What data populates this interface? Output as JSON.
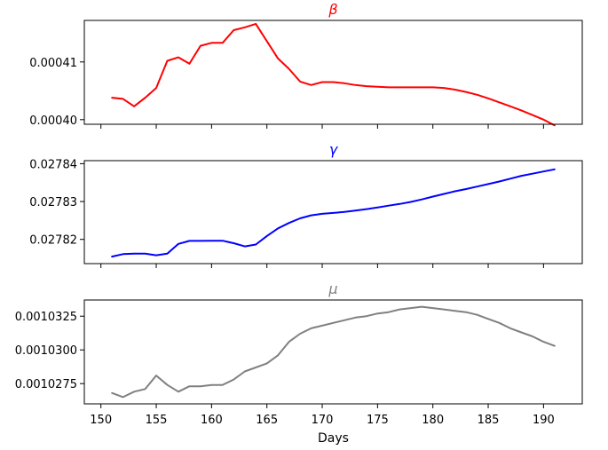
{
  "chart_data": {
    "type": "line",
    "xlabel": "Days",
    "xlim": [
      148.5,
      193.5
    ],
    "xticks": [
      150,
      155,
      160,
      165,
      170,
      175,
      180,
      185,
      190
    ],
    "x": [
      151,
      152,
      153,
      154,
      155,
      156,
      157,
      158,
      159,
      160,
      161,
      162,
      163,
      164,
      165,
      166,
      167,
      168,
      169,
      170,
      171,
      172,
      173,
      174,
      175,
      176,
      177,
      178,
      179,
      180,
      181,
      182,
      183,
      184,
      185,
      186,
      187,
      188,
      189,
      190,
      191
    ],
    "panels": [
      {
        "title": "β",
        "color": "#ff0000",
        "ylim": [
          0.0003992,
          0.0004172
        ],
        "yticks": [
          0.0004,
          0.00041
        ],
        "ytick_labels": [
          "0.00040",
          "0.00041"
        ],
        "values": [
          0.0004038,
          0.0004036,
          0.0004023,
          0.0004038,
          0.0004055,
          0.0004102,
          0.0004108,
          0.0004097,
          0.0004128,
          0.0004133,
          0.0004133,
          0.0004155,
          0.000416,
          0.0004166,
          0.0004136,
          0.0004106,
          0.0004088,
          0.0004066,
          0.000406,
          0.0004065,
          0.0004065,
          0.0004063,
          0.000406,
          0.0004058,
          0.0004057,
          0.0004056,
          0.0004056,
          0.0004056,
          0.0004056,
          0.0004056,
          0.0004055,
          0.0004052,
          0.0004048,
          0.0004043,
          0.0004037,
          0.000403,
          0.0004023,
          0.0004016,
          0.0004008,
          0.0004,
          0.000399
        ]
      },
      {
        "title": "γ",
        "color": "#0000ff",
        "ylim": [
          0.0278136,
          0.0278408
        ],
        "yticks": [
          0.02782,
          0.02783,
          0.02784
        ],
        "ytick_labels": [
          "0.02782",
          "0.02783",
          "0.02784"
        ],
        "values": [
          0.02781545,
          0.0278161,
          0.02781625,
          0.02781625,
          0.0278158,
          0.02781625,
          0.0278188,
          0.0278196,
          0.0278196,
          0.02781965,
          0.02781965,
          0.027819,
          0.02781815,
          0.02781865,
          0.0278209,
          0.0278229,
          0.02782435,
          0.02782555,
          0.02782635,
          0.02782675,
          0.027827,
          0.02782725,
          0.0278276,
          0.027828,
          0.02782845,
          0.0278289,
          0.02782935,
          0.0278299,
          0.02783055,
          0.0278313,
          0.027832,
          0.0278327,
          0.0278333,
          0.02783395,
          0.0278346,
          0.0278353,
          0.02783605,
          0.0278368,
          0.02783735,
          0.02783795,
          0.0278385
        ]
      },
      {
        "title": "μ",
        "color": "#808080",
        "ylim": [
          0.001026,
          0.0010337
        ],
        "yticks": [
          0.0010275,
          0.00103,
          0.0010325
        ],
        "ytick_labels": [
          "0.0010275",
          "0.0010300",
          "0.0010325"
        ],
        "values": [
          0.0010268,
          0.0010265,
          0.0010269,
          0.0010271,
          0.0010281,
          0.0010274,
          0.0010269,
          0.0010273,
          0.0010273,
          0.0010274,
          0.0010274,
          0.0010278,
          0.0010284,
          0.0010287,
          0.001029,
          0.0010296,
          0.0010306,
          0.0010312,
          0.0010316,
          0.0010318,
          0.001032,
          0.0010322,
          0.0010324,
          0.0010325,
          0.0010327,
          0.0010328,
          0.001033,
          0.0010331,
          0.0010332,
          0.0010331,
          0.001033,
          0.0010329,
          0.0010328,
          0.0010326,
          0.0010323,
          0.001032,
          0.0010316,
          0.0010313,
          0.001031,
          0.0010306,
          0.0010303
        ]
      }
    ]
  }
}
